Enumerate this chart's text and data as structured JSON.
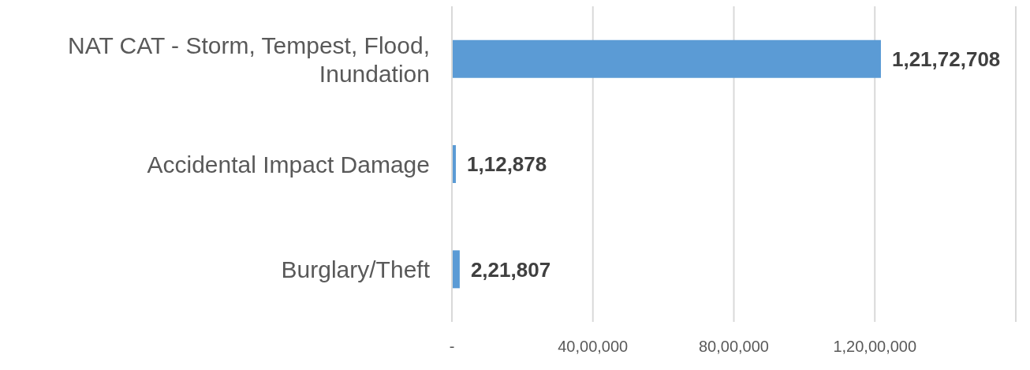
{
  "chart_data": {
    "type": "bar",
    "orientation": "horizontal",
    "categories": [
      "NAT CAT - Storm, Tempest, Flood, Inundation",
      "Accidental Impact Damage",
      "Burglary/Theft"
    ],
    "values": [
      12172708,
      112878,
      221807
    ],
    "color": "#5b9bd5",
    "value_labels": [
      "1,21,72,708",
      "1,12,878",
      "2,21,807"
    ],
    "xlim": [
      0,
      16000000
    ],
    "xticks": [
      {
        "value": 0,
        "label": "-"
      },
      {
        "value": 4000000,
        "label": "40,00,000"
      },
      {
        "value": 8000000,
        "label": "80,00,000"
      },
      {
        "value": 12000000,
        "label": "1,20,00,000"
      }
    ],
    "grid": "x"
  }
}
